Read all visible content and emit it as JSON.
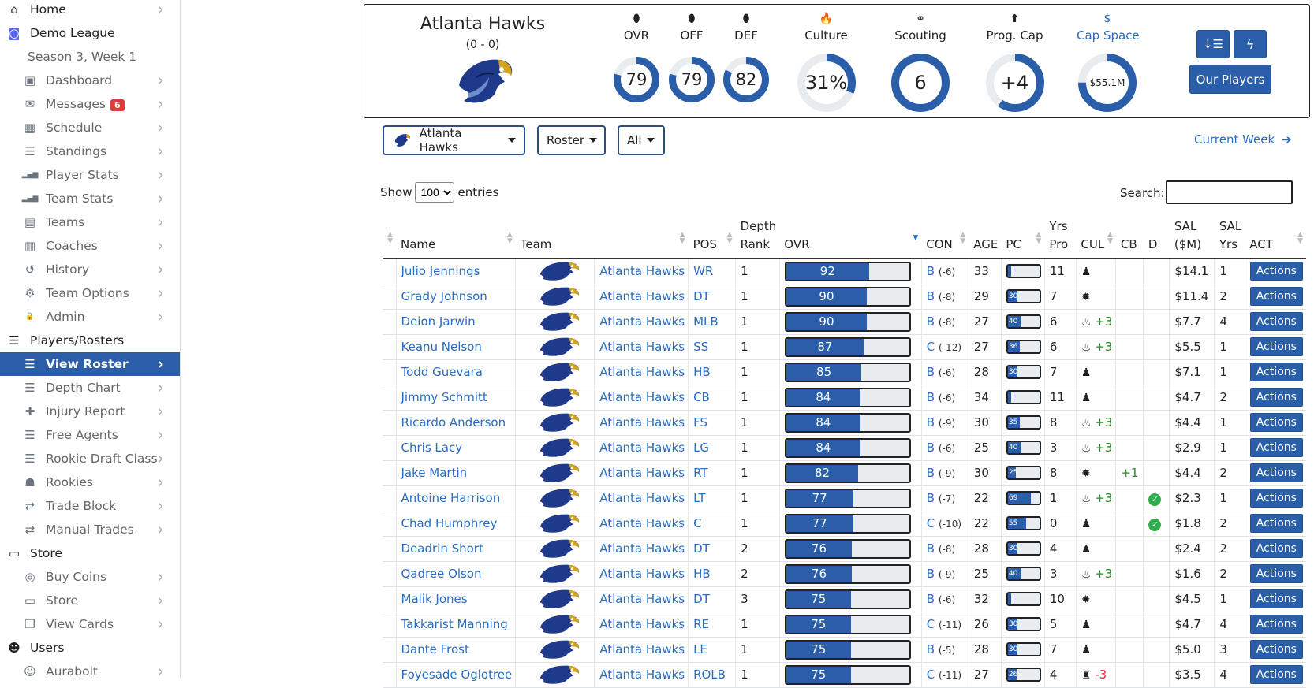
{
  "sidebar": {
    "items": [
      {
        "label": "Home",
        "icon": "home-icon",
        "glyph": "⌂",
        "indent": 0,
        "chevron": true,
        "badge": ""
      },
      {
        "label": "Demo League",
        "icon": "discord-icon",
        "glyph": "◙",
        "indent": 0,
        "chevron": false,
        "badge": ""
      },
      {
        "label": "Season 3, Week 1",
        "icon": "",
        "glyph": "",
        "indent": 1,
        "chevron": false,
        "badge": ""
      },
      {
        "label": "Dashboard",
        "icon": "calendar-check-icon",
        "glyph": "▣",
        "indent": 1,
        "chevron": true,
        "badge": ""
      },
      {
        "label": "Messages",
        "icon": "envelope-icon",
        "glyph": "✉",
        "indent": 1,
        "chevron": true,
        "badge": "6"
      },
      {
        "label": "Schedule",
        "icon": "calendar-icon",
        "glyph": "▦",
        "indent": 1,
        "chevron": true,
        "badge": ""
      },
      {
        "label": "Standings",
        "icon": "list-ol-icon",
        "glyph": "☰",
        "indent": 1,
        "chevron": true,
        "badge": ""
      },
      {
        "label": "Player Stats",
        "icon": "signal-icon",
        "glyph": "▂▄▆",
        "indent": 1,
        "chevron": true,
        "badge": ""
      },
      {
        "label": "Team Stats",
        "icon": "signal-icon",
        "glyph": "▂▄▆",
        "indent": 1,
        "chevron": true,
        "badge": ""
      },
      {
        "label": "Teams",
        "icon": "clipboard-icon",
        "glyph": "▤",
        "indent": 1,
        "chevron": true,
        "badge": ""
      },
      {
        "label": "Coaches",
        "icon": "id-badge-icon",
        "glyph": "▥",
        "indent": 1,
        "chevron": true,
        "badge": ""
      },
      {
        "label": "History",
        "icon": "history-icon",
        "glyph": "↺",
        "indent": 1,
        "chevron": true,
        "badge": ""
      },
      {
        "label": "Team Options",
        "icon": "gear-icon",
        "glyph": "⚙",
        "indent": 1,
        "chevron": true,
        "badge": ""
      },
      {
        "label": "Admin",
        "icon": "lock-icon",
        "glyph": "🔒",
        "indent": 1,
        "chevron": true,
        "badge": ""
      },
      {
        "label": "Players/Rosters",
        "icon": "list-ol-icon",
        "glyph": "☰",
        "indent": 0,
        "chevron": false,
        "badge": ""
      },
      {
        "label": "View Roster",
        "icon": "list-ol-icon",
        "glyph": "☰",
        "indent": 1,
        "chevron": true,
        "badge": "",
        "active": true
      },
      {
        "label": "Depth Chart",
        "icon": "list-ol-icon",
        "glyph": "☰",
        "indent": 1,
        "chevron": true,
        "badge": ""
      },
      {
        "label": "Injury Report",
        "icon": "plus-icon",
        "glyph": "✚",
        "indent": 1,
        "chevron": true,
        "badge": ""
      },
      {
        "label": "Free Agents",
        "icon": "list-ol-icon",
        "glyph": "☰",
        "indent": 1,
        "chevron": true,
        "badge": ""
      },
      {
        "label": "Rookie Draft Class",
        "icon": "list-ol-icon",
        "glyph": "☰",
        "indent": 1,
        "chevron": true,
        "badge": ""
      },
      {
        "label": "Rookies",
        "icon": "user-graduate-icon",
        "glyph": "☗",
        "indent": 1,
        "chevron": true,
        "badge": ""
      },
      {
        "label": "Trade Block",
        "icon": "exchange-icon",
        "glyph": "⇄",
        "indent": 1,
        "chevron": true,
        "badge": ""
      },
      {
        "label": "Manual Trades",
        "icon": "exchange-icon",
        "glyph": "⇄",
        "indent": 1,
        "chevron": true,
        "badge": ""
      },
      {
        "label": "Store",
        "icon": "store-icon",
        "glyph": "▭",
        "indent": 0,
        "chevron": false,
        "badge": ""
      },
      {
        "label": "Buy Coins",
        "icon": "coins-icon",
        "glyph": "◎",
        "indent": 1,
        "chevron": true,
        "badge": ""
      },
      {
        "label": "Store",
        "icon": "store-icon",
        "glyph": "▭",
        "indent": 1,
        "chevron": true,
        "badge": ""
      },
      {
        "label": "View Cards",
        "icon": "clone-icon",
        "glyph": "❐",
        "indent": 1,
        "chevron": true,
        "badge": ""
      },
      {
        "label": "Users",
        "icon": "users-icon",
        "glyph": "☻",
        "indent": 0,
        "chevron": false,
        "badge": ""
      },
      {
        "label": "Aurabolt",
        "icon": "user-icon",
        "glyph": "☺",
        "indent": 1,
        "chevron": true,
        "badge": ""
      }
    ]
  },
  "header": {
    "team_name": "Atlanta Hawks",
    "record": "(0 - 0)",
    "stats": [
      {
        "label": "OVR",
        "icon": "football-icon",
        "glyph": "⬮",
        "value": "79",
        "pct": 0.79,
        "size": "sm",
        "highlight": false
      },
      {
        "label": "OFF",
        "icon": "football-icon",
        "glyph": "⬮",
        "value": "79",
        "pct": 0.79,
        "size": "sm",
        "highlight": false
      },
      {
        "label": "DEF",
        "icon": "football-icon",
        "glyph": "⬮",
        "value": "82",
        "pct": 0.82,
        "size": "sm",
        "highlight": false
      },
      {
        "label": "Culture",
        "icon": "fire-icon",
        "glyph": "🔥",
        "value": "31%",
        "pct": 0.31,
        "size": "lg",
        "highlight": false
      },
      {
        "label": "Scouting",
        "icon": "binoculars-icon",
        "glyph": "⚭",
        "value": "6",
        "pct": 1.0,
        "size": "lg",
        "highlight": false
      },
      {
        "label": "Prog. Cap",
        "icon": "arrow-circle-up-icon",
        "glyph": "⬆",
        "value": "+4",
        "pct": 0.6,
        "size": "lg",
        "highlight": false
      },
      {
        "label": "Cap Space",
        "icon": "dollar-icon",
        "glyph": "$",
        "value": "$55.1M",
        "pct": 0.75,
        "size": "lg",
        "highlight": true
      }
    ],
    "sort_button_icon": "sort-amount-icon",
    "bolt_button_icon": "bolt-icon",
    "our_players_label": "Our Players"
  },
  "filters": {
    "team_label": "Atlanta Hawks",
    "view_label": "Roster",
    "pos_label": "All",
    "current_week_label": "Current Week"
  },
  "table_controls": {
    "show_label": "Show",
    "entries_value": "100",
    "entries_label": "entries",
    "search_label": "Search:"
  },
  "columns": {
    "name": "Name",
    "team": "Team",
    "pos": "POS",
    "depth1": "Depth",
    "depth2": "Rank",
    "ovr": "OVR",
    "con": "CON",
    "age": "AGE",
    "pc": "PC",
    "yrs1": "Yrs",
    "yrs2": "Pro",
    "cul": "CUL",
    "cb": "CB",
    "d": "D",
    "sal1": "SAL",
    "sal2": "($M)",
    "salyrs1": "SAL",
    "salyrs2": "Yrs",
    "act": "ACT"
  },
  "rows": [
    {
      "name": "Julio Jennings",
      "team": "Atlanta Hawks",
      "pos": "WR",
      "depth": "1",
      "ovr": 92,
      "con": "B",
      "con_delta": "(-6)",
      "age": "33",
      "pc": 10,
      "pc_label": "",
      "yrs": "11",
      "cul_icon": "user-tie-icon",
      "cul": "",
      "cb": "",
      "d": false,
      "sal": "$14.1",
      "sal_yrs": "1",
      "act": "Actions"
    },
    {
      "name": "Grady Johnson",
      "team": "Atlanta Hawks",
      "pos": "DT",
      "depth": "1",
      "ovr": 90,
      "con": "B",
      "con_delta": "(-8)",
      "age": "29",
      "pc": 30,
      "pc_label": "30",
      "yrs": "7",
      "cul_icon": "gear-badge-icon",
      "cul": "",
      "cb": "",
      "d": false,
      "sal": "$11.4",
      "sal_yrs": "2",
      "act": "Actions"
    },
    {
      "name": "Deion Jarwin",
      "team": "Atlanta Hawks",
      "pos": "MLB",
      "depth": "1",
      "ovr": 90,
      "con": "B",
      "con_delta": "(-8)",
      "age": "27",
      "pc": 40,
      "pc_label": "40",
      "yrs": "6",
      "cul_icon": "fire-icon",
      "cul": "+3",
      "cb": "",
      "d": false,
      "sal": "$7.7",
      "sal_yrs": "4",
      "act": "Actions"
    },
    {
      "name": "Keanu Nelson",
      "team": "Atlanta Hawks",
      "pos": "SS",
      "depth": "1",
      "ovr": 87,
      "con": "C",
      "con_delta": "(-12)",
      "age": "27",
      "pc": 36,
      "pc_label": "36",
      "yrs": "6",
      "cul_icon": "fire-icon",
      "cul": "+3",
      "cb": "",
      "d": false,
      "sal": "$5.5",
      "sal_yrs": "1",
      "act": "Actions"
    },
    {
      "name": "Todd Guevara",
      "team": "Atlanta Hawks",
      "pos": "HB",
      "depth": "1",
      "ovr": 85,
      "con": "B",
      "con_delta": "(-6)",
      "age": "28",
      "pc": 30,
      "pc_label": "30",
      "yrs": "7",
      "cul_icon": "user-tie-icon",
      "cul": "",
      "cb": "",
      "d": false,
      "sal": "$7.1",
      "sal_yrs": "1",
      "act": "Actions"
    },
    {
      "name": "Jimmy Schmitt",
      "team": "Atlanta Hawks",
      "pos": "CB",
      "depth": "1",
      "ovr": 84,
      "con": "B",
      "con_delta": "(-6)",
      "age": "34",
      "pc": 10,
      "pc_label": "",
      "yrs": "11",
      "cul_icon": "user-tie-icon",
      "cul": "",
      "cb": "",
      "d": false,
      "sal": "$4.7",
      "sal_yrs": "2",
      "act": "Actions"
    },
    {
      "name": "Ricardo Anderson",
      "team": "Atlanta Hawks",
      "pos": "FS",
      "depth": "1",
      "ovr": 84,
      "con": "B",
      "con_delta": "(-9)",
      "age": "30",
      "pc": 35,
      "pc_label": "35",
      "yrs": "8",
      "cul_icon": "fire-icon",
      "cul": "+3",
      "cb": "",
      "d": false,
      "sal": "$4.4",
      "sal_yrs": "1",
      "act": "Actions"
    },
    {
      "name": "Chris Lacy",
      "team": "Atlanta Hawks",
      "pos": "LG",
      "depth": "1",
      "ovr": 84,
      "con": "B",
      "con_delta": "(-6)",
      "age": "25",
      "pc": 40,
      "pc_label": "40",
      "yrs": "3",
      "cul_icon": "fire-icon",
      "cul": "+3",
      "cb": "",
      "d": false,
      "sal": "$2.9",
      "sal_yrs": "1",
      "act": "Actions"
    },
    {
      "name": "Jake Martin",
      "team": "Atlanta Hawks",
      "pos": "RT",
      "depth": "1",
      "ovr": 82,
      "con": "B",
      "con_delta": "(-9)",
      "age": "30",
      "pc": 25,
      "pc_label": "25",
      "yrs": "8",
      "cul_icon": "gear-badge-icon",
      "cul": "",
      "cb": "+1",
      "d": false,
      "sal": "$4.4",
      "sal_yrs": "2",
      "act": "Actions"
    },
    {
      "name": "Antoine Harrison",
      "team": "Atlanta Hawks",
      "pos": "LT",
      "depth": "1",
      "ovr": 77,
      "con": "B",
      "con_delta": "(-7)",
      "age": "22",
      "pc": 69,
      "pc_label": "69",
      "yrs": "1",
      "cul_icon": "fire-icon",
      "cul": "+3",
      "cb": "",
      "d": true,
      "sal": "$2.3",
      "sal_yrs": "1",
      "act": "Actions"
    },
    {
      "name": "Chad Humphrey",
      "team": "Atlanta Hawks",
      "pos": "C",
      "depth": "1",
      "ovr": 77,
      "con": "C",
      "con_delta": "(-10)",
      "age": "22",
      "pc": 55,
      "pc_label": "55",
      "yrs": "0",
      "cul_icon": "user-tie-icon",
      "cul": "",
      "cb": "",
      "d": true,
      "sal": "$1.8",
      "sal_yrs": "2",
      "act": "Actions"
    },
    {
      "name": "Deadrin Short",
      "team": "Atlanta Hawks",
      "pos": "DT",
      "depth": "2",
      "ovr": 76,
      "con": "B",
      "con_delta": "(-8)",
      "age": "28",
      "pc": 30,
      "pc_label": "30",
      "yrs": "4",
      "cul_icon": "user-tie-icon",
      "cul": "",
      "cb": "",
      "d": false,
      "sal": "$2.4",
      "sal_yrs": "2",
      "act": "Actions"
    },
    {
      "name": "Qadree Olson",
      "team": "Atlanta Hawks",
      "pos": "HB",
      "depth": "2",
      "ovr": 76,
      "con": "B",
      "con_delta": "(-9)",
      "age": "25",
      "pc": 40,
      "pc_label": "40",
      "yrs": "3",
      "cul_icon": "fire-icon",
      "cul": "+3",
      "cb": "",
      "d": false,
      "sal": "$1.6",
      "sal_yrs": "2",
      "act": "Actions"
    },
    {
      "name": "Malik Jones",
      "team": "Atlanta Hawks",
      "pos": "DT",
      "depth": "3",
      "ovr": 75,
      "con": "B",
      "con_delta": "(-6)",
      "age": "32",
      "pc": 10,
      "pc_label": "",
      "yrs": "10",
      "cul_icon": "gear-badge-icon",
      "cul": "",
      "cb": "",
      "d": false,
      "sal": "$4.5",
      "sal_yrs": "1",
      "act": "Actions"
    },
    {
      "name": "Takkarist Manning",
      "team": "Atlanta Hawks",
      "pos": "RE",
      "depth": "1",
      "ovr": 75,
      "con": "C",
      "con_delta": "(-11)",
      "age": "26",
      "pc": 30,
      "pc_label": "30",
      "yrs": "5",
      "cul_icon": "user-tie-icon",
      "cul": "",
      "cb": "",
      "d": false,
      "sal": "$4.7",
      "sal_yrs": "4",
      "act": "Actions"
    },
    {
      "name": "Dante Frost",
      "team": "Atlanta Hawks",
      "pos": "LE",
      "depth": "1",
      "ovr": 75,
      "con": "B",
      "con_delta": "(-5)",
      "age": "28",
      "pc": 30,
      "pc_label": "30",
      "yrs": "7",
      "cul_icon": "user-tie-icon",
      "cul": "",
      "cb": "",
      "d": false,
      "sal": "$5.0",
      "sal_yrs": "3",
      "act": "Actions"
    },
    {
      "name": "Foyesade Oglotree",
      "team": "Atlanta Hawks",
      "pos": "ROLB",
      "depth": "1",
      "ovr": 75,
      "con": "C",
      "con_delta": "(-11)",
      "age": "27",
      "pc": 26,
      "pc_label": "26",
      "yrs": "4",
      "cul_icon": "chess-rook-icon",
      "cul": "-3",
      "cb": "",
      "d": false,
      "sal": "$3.5",
      "sal_yrs": "4",
      "act": "Actions"
    }
  ],
  "colors": {
    "accent": "#2a5ea8",
    "link": "#2a6cc0",
    "badge": "#e03b3b",
    "positive": "#2a8a2a",
    "negative": "#dd3333"
  }
}
